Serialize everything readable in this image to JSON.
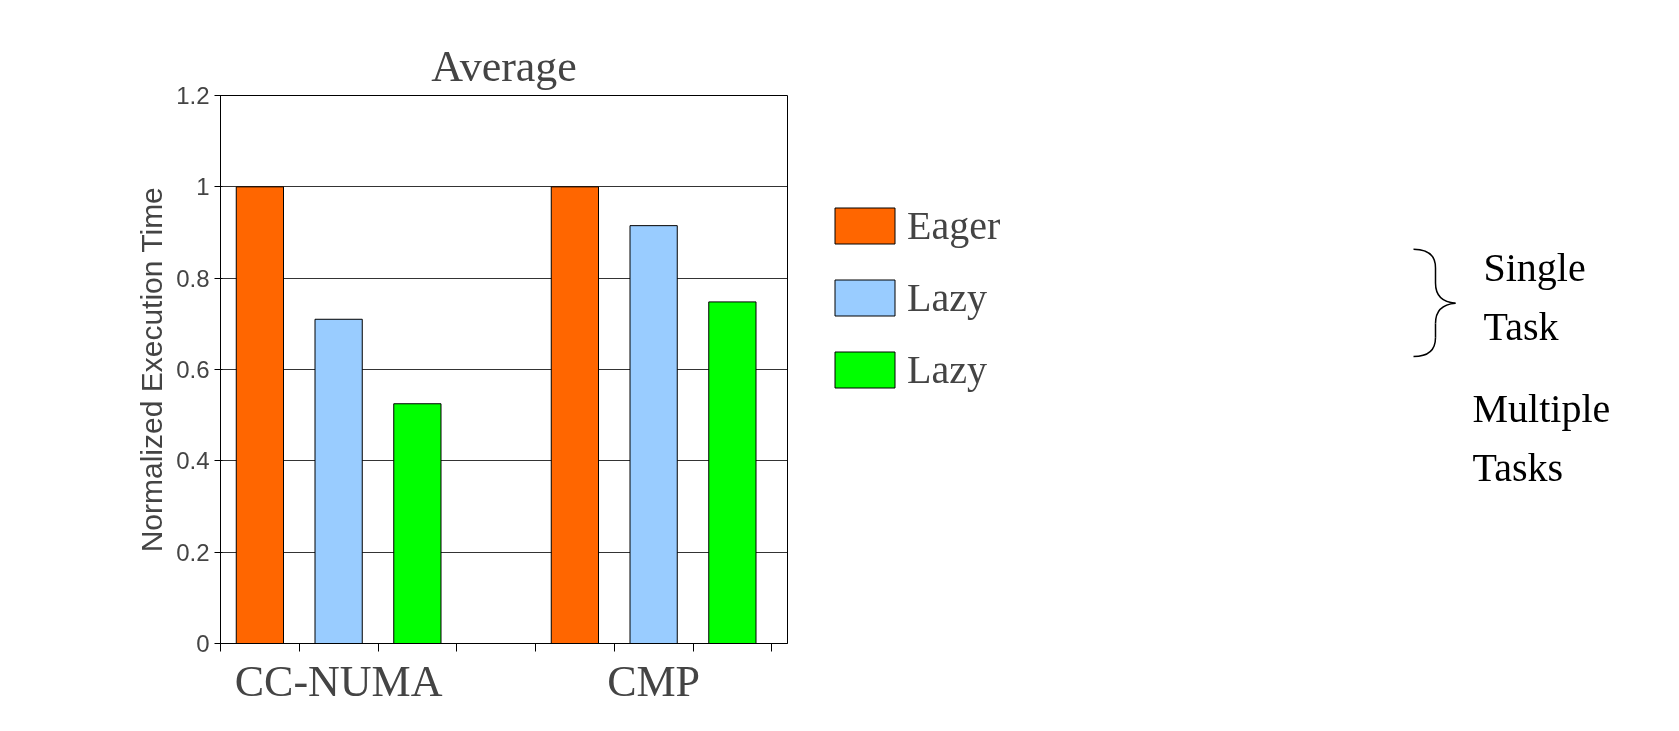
{
  "chart_data": {
    "type": "bar",
    "title": "Average",
    "ylabel": "Normalized Execution Time",
    "categories": [
      "CC-NUMA",
      "CMP"
    ],
    "series": [
      {
        "name": "Eager",
        "color": "#ff6600",
        "values": [
          1.0,
          1.0
        ]
      },
      {
        "name": "Lazy",
        "color": "#99ccff",
        "values": [
          0.71,
          0.915
        ]
      },
      {
        "name": "Lazy",
        "color": "#00ff00",
        "values": [
          0.525,
          0.748
        ]
      }
    ],
    "ylim": [
      0,
      1.2
    ],
    "yticks": [
      0,
      0.2,
      0.4,
      0.6,
      0.8,
      1,
      1.2
    ],
    "grid": "y",
    "legend": "right",
    "annotations": [
      "Single Task",
      "Multiple Tasks"
    ]
  }
}
